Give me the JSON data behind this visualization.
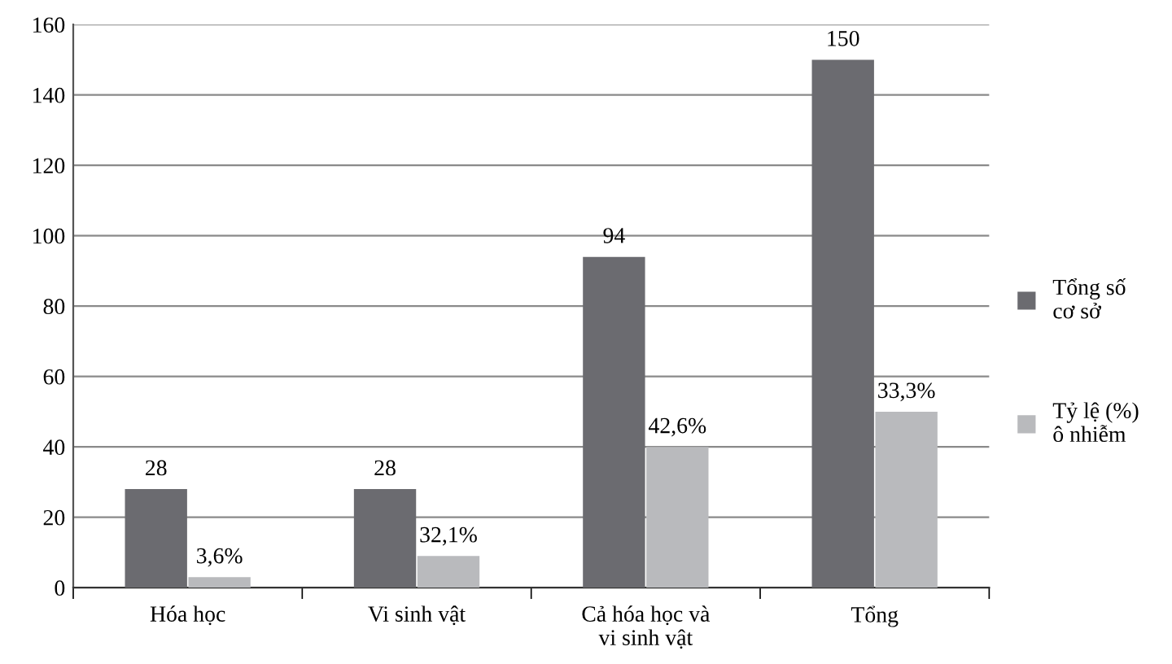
{
  "chart_data": {
    "type": "bar",
    "categories": [
      "Hóa học",
      "Vi sinh vật",
      "Cả hóa học và vi sinh vật",
      "Tổng"
    ],
    "series": [
      {
        "name": "Tổng số cơ sở",
        "color": "#6b6b70",
        "values": [
          28,
          28,
          94,
          150
        ],
        "data_labels": true
      },
      {
        "name": "Tỷ lệ (%) ô nhiễm",
        "color": "#b9babd",
        "values": [
          3,
          9,
          40,
          50
        ]
      }
    ],
    "annotations": [
      {
        "text": "3,6%",
        "x": "Hóa học",
        "y": 3
      },
      {
        "text": "32,1%",
        "x": "Vi sinh vật",
        "y": 9
      },
      {
        "text": "42,6%",
        "x": "Cả hóa học và vi sinh vật",
        "y": 40
      },
      {
        "text": "33,3%",
        "x": "Tổng",
        "y": 50
      }
    ],
    "ylim": [
      0,
      160
    ],
    "yticks": [
      0,
      20,
      40,
      60,
      80,
      100,
      120,
      140,
      160
    ],
    "grid": "y",
    "legend": "right"
  }
}
